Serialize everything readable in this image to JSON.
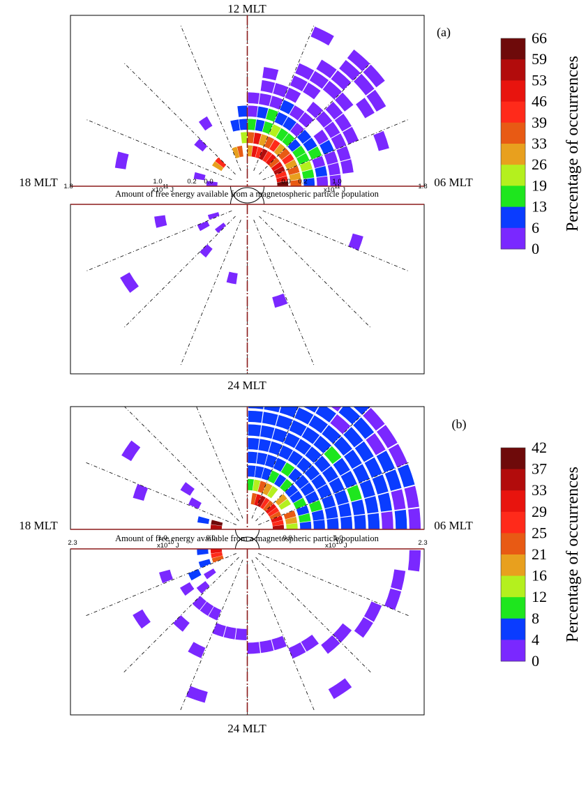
{
  "chart_data": [
    {
      "type": "heatmap",
      "panel_label": "(a)",
      "top_label": "12 MLT",
      "bottom_label": "24 MLT",
      "left_label": "18 MLT",
      "right_label": "06 MLT",
      "caption": "Amount of free energy available from a magnetospheric particle population",
      "radial_ticks": {
        "left": [
          "1.8",
          "1.0",
          "0.2",
          "0.0"
        ],
        "right": [
          "0.0",
          "0.2",
          "1.0",
          "1.8"
        ]
      },
      "scale_left": "x10",
      "scale_left_exp": "11",
      "scale_left_unit": "J",
      "scale_right": "x10",
      "scale_right_exp": "11",
      "scale_right_unit": "J",
      "colorbar": {
        "label": "Percentage of occurrences",
        "ticks": [
          "66",
          "59",
          "53",
          "46",
          "39",
          "33",
          "26",
          "19",
          "13",
          "6",
          "0"
        ],
        "colors": [
          "#6e0a0a",
          "#b20c0c",
          "#e8140e",
          "#ff2a1a",
          "#e85a14",
          "#e8a01e",
          "#b4f01e",
          "#1ee61e",
          "#0a3cff",
          "#7a28ff"
        ]
      },
      "rings": 12,
      "sectors": 48,
      "cells": [
        [
          1,
          0,
          9
        ],
        [
          1,
          1,
          7
        ],
        [
          1,
          2,
          6
        ],
        [
          1,
          3,
          8
        ],
        [
          1,
          4,
          7
        ],
        [
          1,
          5,
          5
        ],
        [
          1,
          6,
          7
        ],
        [
          1,
          7,
          6
        ],
        [
          1,
          8,
          8
        ],
        [
          1,
          9,
          6
        ],
        [
          1,
          10,
          7
        ],
        [
          1,
          11,
          4
        ],
        [
          1,
          13,
          5
        ],
        [
          1,
          14,
          4
        ],
        [
          1,
          18,
          6
        ],
        [
          1,
          19,
          4
        ],
        [
          2,
          0,
          5
        ],
        [
          2,
          1,
          4
        ],
        [
          2,
          2,
          5
        ],
        [
          2,
          3,
          4
        ],
        [
          2,
          4,
          6
        ],
        [
          2,
          5,
          5
        ],
        [
          2,
          6,
          4
        ],
        [
          2,
          7,
          6
        ],
        [
          2,
          8,
          5
        ],
        [
          2,
          9,
          4
        ],
        [
          2,
          10,
          7
        ],
        [
          2,
          11,
          5
        ],
        [
          2,
          12,
          3
        ],
        [
          3,
          0,
          1
        ],
        [
          3,
          1,
          2
        ],
        [
          3,
          2,
          3
        ],
        [
          3,
          3,
          2
        ],
        [
          3,
          4,
          2
        ],
        [
          3,
          5,
          1
        ],
        [
          3,
          6,
          2
        ],
        [
          3,
          7,
          2
        ],
        [
          3,
          8,
          3
        ],
        [
          3,
          9,
          2
        ],
        [
          3,
          10,
          1
        ],
        [
          3,
          11,
          2
        ],
        [
          3,
          12,
          1
        ],
        [
          3,
          13,
          1
        ],
        [
          4,
          0,
          0
        ],
        [
          4,
          1,
          1
        ],
        [
          4,
          2,
          0
        ],
        [
          4,
          3,
          2
        ],
        [
          4,
          4,
          1
        ],
        [
          4,
          5,
          1
        ],
        [
          4,
          6,
          0
        ],
        [
          4,
          7,
          1
        ],
        [
          4,
          8,
          1
        ],
        [
          4,
          9,
          2
        ],
        [
          4,
          10,
          1
        ],
        [
          4,
          11,
          0
        ],
        [
          4,
          12,
          1
        ],
        [
          5,
          0,
          0
        ],
        [
          5,
          1,
          0
        ],
        [
          5,
          2,
          0
        ],
        [
          5,
          3,
          1
        ],
        [
          5,
          4,
          0
        ],
        [
          5,
          6,
          0
        ],
        [
          5,
          7,
          0
        ],
        [
          5,
          8,
          1
        ],
        [
          5,
          9,
          0
        ],
        [
          5,
          10,
          0
        ],
        [
          5,
          11,
          0
        ],
        [
          6,
          1,
          0
        ],
        [
          6,
          2,
          0
        ],
        [
          6,
          3,
          0
        ],
        [
          6,
          4,
          0
        ],
        [
          6,
          5,
          0
        ],
        [
          6,
          6,
          0
        ],
        [
          6,
          8,
          0
        ],
        [
          6,
          9,
          0
        ],
        [
          6,
          10,
          0
        ],
        [
          7,
          3,
          0
        ],
        [
          7,
          4,
          0
        ],
        [
          7,
          5,
          0
        ],
        [
          7,
          7,
          0
        ],
        [
          7,
          8,
          0
        ],
        [
          7,
          10,
          0
        ],
        [
          8,
          5,
          0
        ],
        [
          8,
          6,
          0
        ],
        [
          8,
          7,
          0
        ],
        [
          8,
          8,
          0
        ],
        [
          9,
          2,
          0
        ],
        [
          9,
          4,
          0
        ],
        [
          9,
          6,
          0
        ],
        [
          9,
          7,
          0
        ],
        [
          10,
          4,
          0
        ],
        [
          10,
          5,
          0
        ],
        [
          10,
          6,
          0
        ],
        [
          11,
          5,
          0
        ],
        [
          11,
          6,
          0
        ],
        [
          11,
          8,
          0
        ],
        [
          1,
          23,
          0
        ],
        [
          1,
          26,
          0
        ],
        [
          1,
          29,
          0
        ],
        [
          2,
          22,
          0
        ],
        [
          2,
          27,
          0
        ],
        [
          3,
          18,
          0
        ],
        [
          3,
          30,
          0
        ],
        [
          4,
          16,
          0
        ],
        [
          4,
          34,
          0
        ],
        [
          5,
          25,
          0
        ],
        [
          6,
          38,
          0
        ],
        [
          7,
          45,
          0
        ],
        [
          8,
          22,
          0
        ],
        [
          9,
          28,
          0
        ]
      ]
    },
    {
      "type": "heatmap",
      "panel_label": "(b)",
      "top_label": "",
      "bottom_label": "24 MLT",
      "left_label": "18 MLT",
      "right_label": "06 MLT",
      "caption": "Amount of free energy available from a magnetospheric particle population",
      "radial_ticks": {
        "left": [
          "2.3",
          "1.0",
          "0.0"
        ],
        "right": [
          "0.0",
          "1.0",
          "2.3"
        ]
      },
      "scale_left": "x10",
      "scale_left_exp": "10",
      "scale_left_unit": "J",
      "scale_right": "x10",
      "scale_right_exp": "10",
      "scale_right_unit": "J",
      "colorbar": {
        "label": "Percentage of occurrences",
        "ticks": [
          "42",
          "37",
          "33",
          "29",
          "25",
          "21",
          "16",
          "12",
          "8",
          "4",
          "0"
        ],
        "colors": [
          "#6e0a0a",
          "#b20c0c",
          "#e8140e",
          "#ff2a1a",
          "#e85a14",
          "#e8a01e",
          "#b4f01e",
          "#1ee61e",
          "#0a3cff",
          "#7a28ff"
        ]
      },
      "rings": 12,
      "sectors": 48,
      "cells": [
        [
          1,
          0,
          8
        ],
        [
          1,
          1,
          6
        ],
        [
          1,
          2,
          7
        ],
        [
          1,
          3,
          5
        ],
        [
          1,
          4,
          6
        ],
        [
          1,
          5,
          7
        ],
        [
          1,
          6,
          5
        ],
        [
          1,
          7,
          6
        ],
        [
          1,
          8,
          8
        ],
        [
          1,
          9,
          7
        ],
        [
          1,
          10,
          5
        ],
        [
          2,
          0,
          3
        ],
        [
          2,
          1,
          4
        ],
        [
          2,
          2,
          5
        ],
        [
          2,
          4,
          3
        ],
        [
          2,
          5,
          4
        ],
        [
          2,
          7,
          3
        ],
        [
          2,
          8,
          4
        ],
        [
          2,
          9,
          5
        ],
        [
          2,
          10,
          3
        ],
        [
          2,
          11,
          2
        ],
        [
          3,
          0,
          1
        ],
        [
          3,
          1,
          2
        ],
        [
          3,
          2,
          1
        ],
        [
          3,
          3,
          2
        ],
        [
          3,
          4,
          1
        ],
        [
          3,
          5,
          1
        ],
        [
          3,
          6,
          2
        ],
        [
          3,
          7,
          1
        ],
        [
          3,
          8,
          2
        ],
        [
          3,
          9,
          1
        ],
        [
          3,
          10,
          1
        ],
        [
          3,
          11,
          1
        ],
        [
          4,
          0,
          1
        ],
        [
          4,
          1,
          1
        ],
        [
          4,
          2,
          2
        ],
        [
          4,
          3,
          1
        ],
        [
          4,
          4,
          1
        ],
        [
          4,
          5,
          1
        ],
        [
          4,
          6,
          1
        ],
        [
          4,
          7,
          2
        ],
        [
          4,
          8,
          1
        ],
        [
          4,
          9,
          1
        ],
        [
          4,
          10,
          1
        ],
        [
          4,
          11,
          1
        ],
        [
          5,
          0,
          1
        ],
        [
          5,
          1,
          1
        ],
        [
          5,
          2,
          1
        ],
        [
          5,
          3,
          1
        ],
        [
          5,
          4,
          1
        ],
        [
          5,
          5,
          1
        ],
        [
          5,
          6,
          1
        ],
        [
          5,
          7,
          1
        ],
        [
          5,
          8,
          1
        ],
        [
          5,
          9,
          1
        ],
        [
          5,
          10,
          1
        ],
        [
          5,
          11,
          1
        ],
        [
          6,
          0,
          1
        ],
        [
          6,
          1,
          1
        ],
        [
          6,
          2,
          1
        ],
        [
          6,
          3,
          1
        ],
        [
          6,
          4,
          1
        ],
        [
          6,
          5,
          1
        ],
        [
          6,
          6,
          1
        ],
        [
          6,
          7,
          1
        ],
        [
          6,
          8,
          1
        ],
        [
          6,
          9,
          1
        ],
        [
          6,
          10,
          1
        ],
        [
          6,
          11,
          1
        ],
        [
          7,
          0,
          1
        ],
        [
          7,
          1,
          1
        ],
        [
          7,
          2,
          2
        ],
        [
          7,
          3,
          1
        ],
        [
          7,
          4,
          1
        ],
        [
          7,
          5,
          2
        ],
        [
          7,
          6,
          1
        ],
        [
          7,
          7,
          1
        ],
        [
          7,
          8,
          1
        ],
        [
          7,
          9,
          1
        ],
        [
          7,
          10,
          1
        ],
        [
          7,
          11,
          1
        ],
        [
          8,
          0,
          1
        ],
        [
          8,
          1,
          1
        ],
        [
          8,
          2,
          1
        ],
        [
          8,
          3,
          1
        ],
        [
          8,
          4,
          1
        ],
        [
          8,
          5,
          1
        ],
        [
          8,
          6,
          1
        ],
        [
          8,
          7,
          1
        ],
        [
          8,
          8,
          1
        ],
        [
          8,
          9,
          1
        ],
        [
          8,
          10,
          1
        ],
        [
          8,
          11,
          1
        ],
        [
          9,
          0,
          0
        ],
        [
          9,
          1,
          1
        ],
        [
          9,
          2,
          1
        ],
        [
          9,
          3,
          1
        ],
        [
          9,
          4,
          1
        ],
        [
          9,
          5,
          1
        ],
        [
          9,
          6,
          0
        ],
        [
          9,
          7,
          1
        ],
        [
          9,
          8,
          1
        ],
        [
          9,
          9,
          0
        ],
        [
          9,
          10,
          1
        ],
        [
          9,
          11,
          1
        ],
        [
          10,
          0,
          1
        ],
        [
          10,
          1,
          0
        ],
        [
          10,
          2,
          1
        ],
        [
          10,
          3,
          1
        ],
        [
          10,
          4,
          0
        ],
        [
          10,
          5,
          1
        ],
        [
          10,
          6,
          1
        ],
        [
          10,
          7,
          0
        ],
        [
          10,
          8,
          1
        ],
        [
          10,
          9,
          1
        ],
        [
          10,
          10,
          1
        ],
        [
          10,
          11,
          1
        ],
        [
          11,
          0,
          0
        ],
        [
          11,
          1,
          0
        ],
        [
          11,
          2,
          1
        ],
        [
          11,
          3,
          0
        ],
        [
          11,
          4,
          0
        ],
        [
          11,
          5,
          0
        ],
        [
          11,
          6,
          1
        ],
        [
          11,
          7,
          0
        ],
        [
          11,
          8,
          0
        ],
        [
          11,
          9,
          0
        ],
        [
          11,
          10,
          1
        ],
        [
          11,
          11,
          0
        ],
        [
          1,
          22,
          9
        ],
        [
          1,
          23,
          8
        ],
        [
          1,
          24,
          7
        ],
        [
          1,
          25,
          6
        ],
        [
          1,
          26,
          5
        ],
        [
          2,
          22,
          1
        ],
        [
          2,
          24,
          1
        ],
        [
          2,
          26,
          1
        ],
        [
          2,
          28,
          0
        ],
        [
          3,
          20,
          0
        ],
        [
          3,
          27,
          1
        ],
        [
          3,
          29,
          0
        ],
        [
          4,
          19,
          0
        ],
        [
          4,
          28,
          0
        ],
        [
          4,
          30,
          0
        ],
        [
          4,
          31,
          0
        ],
        [
          4,
          32,
          0
        ],
        [
          5,
          26,
          0
        ],
        [
          5,
          33,
          0
        ],
        [
          5,
          34,
          0
        ],
        [
          5,
          35,
          0
        ],
        [
          6,
          30,
          0
        ],
        [
          6,
          36,
          0
        ],
        [
          6,
          37,
          0
        ],
        [
          6,
          38,
          0
        ],
        [
          7,
          21,
          0
        ],
        [
          7,
          32,
          0
        ],
        [
          7,
          39,
          0
        ],
        [
          7,
          40,
          0
        ],
        [
          8,
          28,
          0
        ],
        [
          8,
          41,
          0
        ],
        [
          8,
          42,
          0
        ],
        [
          9,
          19,
          0
        ],
        [
          9,
          43,
          0
        ],
        [
          9,
          44,
          0
        ],
        [
          10,
          33,
          0
        ],
        [
          10,
          45,
          0
        ],
        [
          10,
          46,
          0
        ],
        [
          11,
          40,
          0
        ],
        [
          11,
          47,
          0
        ]
      ]
    }
  ]
}
